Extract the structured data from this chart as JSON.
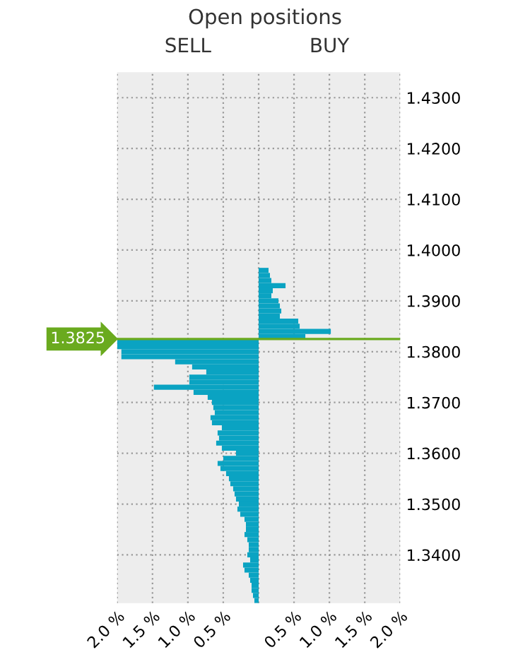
{
  "chart_data": {
    "type": "bar",
    "orientation": "horizontal",
    "title": "Open positions",
    "annotations": [
      "SELL",
      "BUY"
    ],
    "series": [
      {
        "color": "#0aa3c2",
        "x": [
          1.396,
          1.395,
          1.394,
          1.393,
          1.392,
          1.391,
          1.39,
          1.389,
          1.388,
          1.387,
          1.386,
          1.385,
          1.384,
          1.383,
          1.382,
          1.381,
          1.38,
          1.379,
          1.378,
          1.377,
          1.376,
          1.375,
          1.374,
          1.373,
          1.372,
          1.371,
          1.37,
          1.369,
          1.368,
          1.367,
          1.366,
          1.365,
          1.364,
          1.363,
          1.362,
          1.361,
          1.36,
          1.359,
          1.358,
          1.357,
          1.356,
          1.355,
          1.354,
          1.353,
          1.352,
          1.351,
          1.35,
          1.349,
          1.348,
          1.347,
          1.346,
          1.345,
          1.344,
          1.343,
          1.342,
          1.341,
          1.34,
          1.339,
          1.338,
          1.337,
          1.336,
          1.335,
          1.334,
          1.333,
          1.332,
          1.331
        ],
        "values": [
          0.14,
          0.16,
          0.18,
          0.38,
          0.2,
          0.18,
          0.28,
          0.3,
          0.32,
          0.3,
          0.56,
          0.58,
          1.02,
          0.66,
          -2.0,
          -2.0,
          -1.94,
          -1.94,
          -1.18,
          -0.94,
          -0.74,
          -0.98,
          -0.98,
          -1.48,
          -0.92,
          -0.72,
          -0.66,
          -0.64,
          -0.62,
          -0.68,
          -0.66,
          -0.52,
          -0.58,
          -0.56,
          -0.6,
          -0.52,
          -0.32,
          -0.5,
          -0.58,
          -0.54,
          -0.46,
          -0.42,
          -0.4,
          -0.36,
          -0.34,
          -0.32,
          -0.28,
          -0.3,
          -0.26,
          -0.2,
          -0.18,
          -0.18,
          -0.2,
          -0.16,
          -0.14,
          -0.14,
          -0.16,
          -0.12,
          -0.22,
          -0.2,
          -0.14,
          -0.12,
          -0.1,
          -0.1,
          -0.08,
          -0.06
        ]
      }
    ],
    "xlim": [
      -2.0,
      2.0
    ],
    "xticks": [
      {
        "value": -2.0,
        "label": "2.0 %"
      },
      {
        "value": -1.5,
        "label": "1.5 %"
      },
      {
        "value": -1.0,
        "label": "1.0 %"
      },
      {
        "value": -0.5,
        "label": "0.5 %"
      },
      {
        "value": 0,
        "label": null
      },
      {
        "value": 0.5,
        "label": "0.5 %"
      },
      {
        "value": 1.0,
        "label": "1.0 %"
      },
      {
        "value": 1.5,
        "label": "1.5 %"
      },
      {
        "value": 2.0,
        "label": "2.0 %"
      }
    ],
    "ylim": [
      1.3305,
      1.435
    ],
    "yticks": [
      {
        "value": 1.34,
        "label": "1.3400"
      },
      {
        "value": 1.35,
        "label": "1.3500"
      },
      {
        "value": 1.36,
        "label": "1.3600"
      },
      {
        "value": 1.37,
        "label": "1.3700"
      },
      {
        "value": 1.38,
        "label": "1.3800"
      },
      {
        "value": 1.39,
        "label": "1.3900"
      },
      {
        "value": 1.4,
        "label": "1.4000"
      },
      {
        "value": 1.41,
        "label": "1.4100"
      },
      {
        "value": 1.42,
        "label": "1.4200"
      },
      {
        "value": 1.43,
        "label": "1.4300"
      }
    ],
    "ref_lines": [
      {
        "axis": "y",
        "value": 1.3825,
        "label": "1.3825",
        "color": "#6aaa1e"
      }
    ],
    "grid": true
  }
}
